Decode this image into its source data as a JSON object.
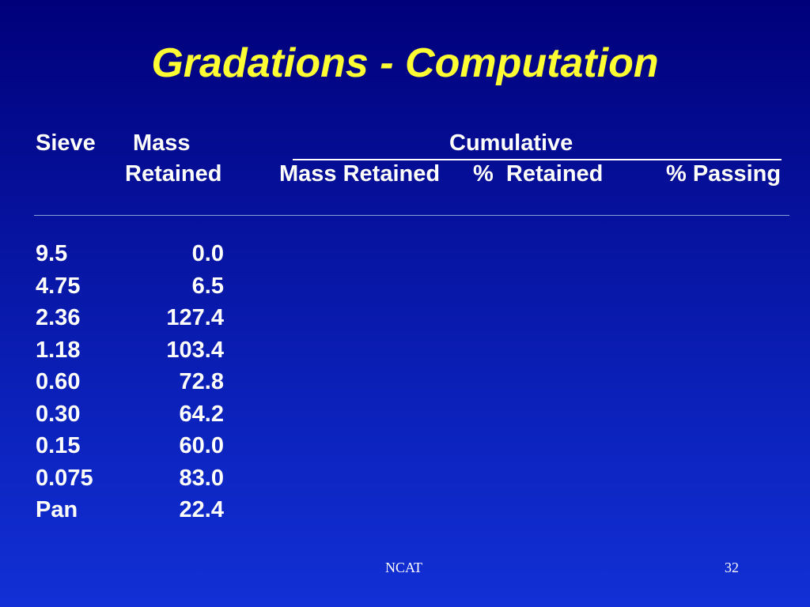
{
  "slide": {
    "title": "Gradations - Computation",
    "footer_center": "NCAT",
    "page_number": "32"
  },
  "table": {
    "headers": {
      "sieve": "Sieve",
      "mass": "Mass",
      "mass_retained_2": "Retained",
      "cumulative": "Cumulative",
      "cum_mass_retained": "Mass Retained",
      "pct_retained": "%  Retained",
      "pct_passing": "% Passing"
    },
    "rows": [
      {
        "sieve": "9.5",
        "mass": "0.0"
      },
      {
        "sieve": "4.75",
        "mass": "6.5"
      },
      {
        "sieve": "2.36",
        "mass": "127.4"
      },
      {
        "sieve": "1.18",
        "mass": "103.4"
      },
      {
        "sieve": "0.60",
        "mass": "72.8"
      },
      {
        "sieve": "0.30",
        "mass": "64.2"
      },
      {
        "sieve": "0.15",
        "mass": "60.0"
      },
      {
        "sieve": "0.075",
        "mass": "83.0"
      },
      {
        "sieve": "Pan",
        "mass": "22.4"
      }
    ]
  }
}
